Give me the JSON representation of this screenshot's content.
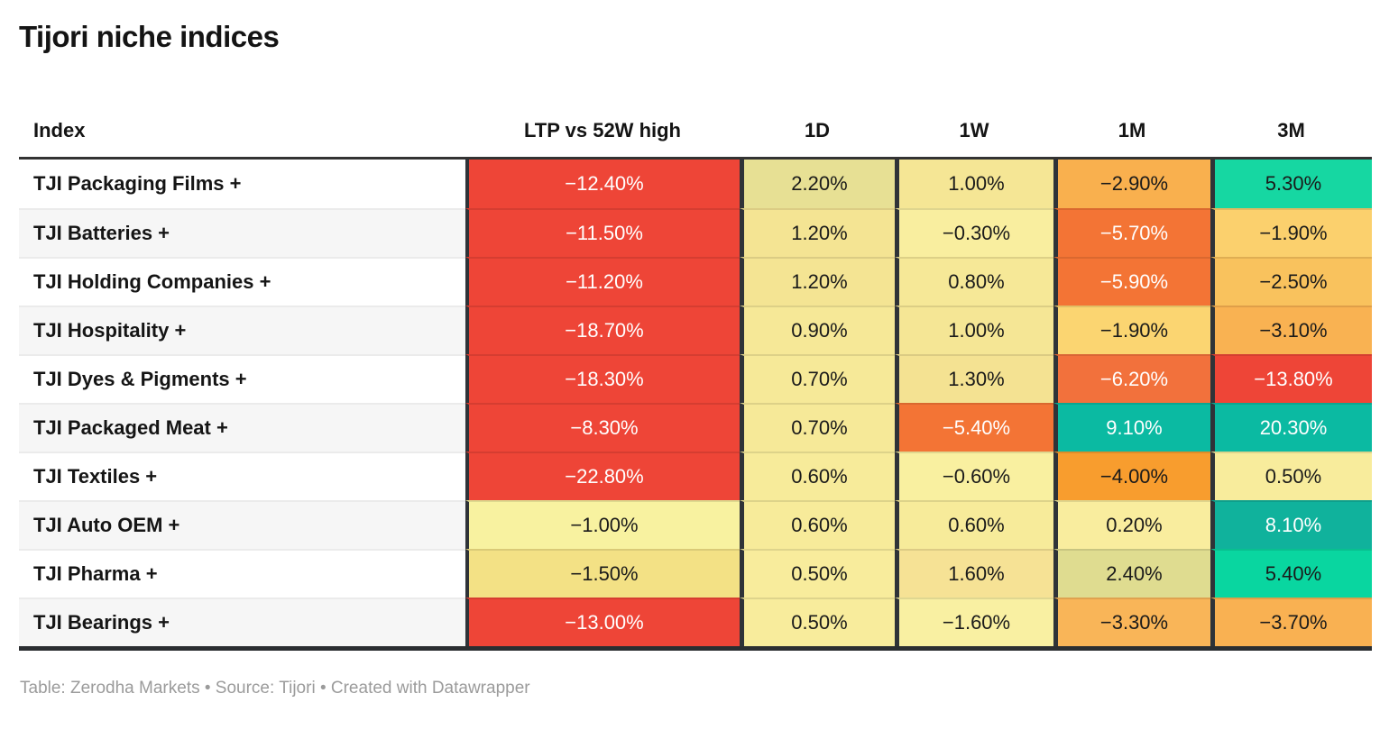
{
  "title": "Tijori niche indices",
  "footer": "Table: Zerodha Markets • Source: Tijori • Created with Datawrapper",
  "accent_colors": {
    "negative_strong": "#ee4537",
    "negative_medium": "#f37435",
    "orange": "#f89d2e",
    "neutral_yellow": "#f7eb9a",
    "positive_bright": "#16d7a2",
    "positive_teal": "#0bbaa2",
    "header_rule": "#333333",
    "column_divider": "#2f3338",
    "dark_text": "#1a1a1a",
    "light_text": "#ffffff"
  },
  "chart_data": {
    "type": "table",
    "title": "Tijori niche indices",
    "columns": [
      "Index",
      "LTP vs 52W high",
      "1D",
      "1W",
      "1M",
      "3M"
    ],
    "rows": [
      {
        "index": "TJI Packaging Films +",
        "values": [
          -12.4,
          2.2,
          1.0,
          -2.9,
          5.3
        ],
        "cells": [
          {
            "text": "−12.40%",
            "bg": "#ee4537",
            "fg": "#ffffff"
          },
          {
            "text": "2.20%",
            "bg": "#e7e094",
            "fg": "#1a1a1a"
          },
          {
            "text": "1.00%",
            "bg": "#f5e695",
            "fg": "#1a1a1a"
          },
          {
            "text": "−2.90%",
            "bg": "#f9b04e",
            "fg": "#1a1a1a"
          },
          {
            "text": "5.30%",
            "bg": "#16d7a2",
            "fg": "#1a1a1a"
          }
        ]
      },
      {
        "index": "TJI Batteries +",
        "values": [
          -11.5,
          1.2,
          -0.3,
          -5.7,
          -1.9
        ],
        "cells": [
          {
            "text": "−11.50%",
            "bg": "#ee4537",
            "fg": "#ffffff"
          },
          {
            "text": "1.20%",
            "bg": "#f4e493",
            "fg": "#1a1a1a"
          },
          {
            "text": "−0.30%",
            "bg": "#f9ee9f",
            "fg": "#1a1a1a"
          },
          {
            "text": "−5.70%",
            "bg": "#f37435",
            "fg": "#ffffff"
          },
          {
            "text": "−1.90%",
            "bg": "#fbd06d",
            "fg": "#1a1a1a"
          }
        ]
      },
      {
        "index": "TJI Holding Companies +",
        "values": [
          -11.2,
          1.2,
          0.8,
          -5.9,
          -2.5
        ],
        "cells": [
          {
            "text": "−11.20%",
            "bg": "#ee4537",
            "fg": "#ffffff"
          },
          {
            "text": "1.20%",
            "bg": "#f4e493",
            "fg": "#1a1a1a"
          },
          {
            "text": "0.80%",
            "bg": "#f6e897",
            "fg": "#1a1a1a"
          },
          {
            "text": "−5.90%",
            "bg": "#f37435",
            "fg": "#ffffff"
          },
          {
            "text": "−2.50%",
            "bg": "#f9c25d",
            "fg": "#1a1a1a"
          }
        ]
      },
      {
        "index": "TJI Hospitality +",
        "values": [
          -18.7,
          0.9,
          1.0,
          -1.9,
          -3.1
        ],
        "cells": [
          {
            "text": "−18.70%",
            "bg": "#ee4537",
            "fg": "#ffffff"
          },
          {
            "text": "0.90%",
            "bg": "#f6e897",
            "fg": "#1a1a1a"
          },
          {
            "text": "1.00%",
            "bg": "#f5e695",
            "fg": "#1a1a1a"
          },
          {
            "text": "−1.90%",
            "bg": "#fbd571",
            "fg": "#1a1a1a"
          },
          {
            "text": "−3.10%",
            "bg": "#f9b252",
            "fg": "#1a1a1a"
          }
        ]
      },
      {
        "index": "TJI Dyes & Pigments +",
        "values": [
          -18.3,
          0.7,
          1.3,
          -6.2,
          -13.8
        ],
        "cells": [
          {
            "text": "−18.30%",
            "bg": "#ee4537",
            "fg": "#ffffff"
          },
          {
            "text": "0.70%",
            "bg": "#f6e998",
            "fg": "#1a1a1a"
          },
          {
            "text": "1.30%",
            "bg": "#f4e292",
            "fg": "#1a1a1a"
          },
          {
            "text": "−6.20%",
            "bg": "#f2713c",
            "fg": "#ffffff"
          },
          {
            "text": "−13.80%",
            "bg": "#ee4537",
            "fg": "#ffffff"
          }
        ]
      },
      {
        "index": "TJI Packaged Meat +",
        "values": [
          -8.3,
          0.7,
          -5.4,
          9.1,
          20.3
        ],
        "cells": [
          {
            "text": "−8.30%",
            "bg": "#ee4537",
            "fg": "#ffffff"
          },
          {
            "text": "0.70%",
            "bg": "#f6e998",
            "fg": "#1a1a1a"
          },
          {
            "text": "−5.40%",
            "bg": "#f37435",
            "fg": "#ffffff"
          },
          {
            "text": "9.10%",
            "bg": "#0bbaa2",
            "fg": "#ffffff"
          },
          {
            "text": "20.30%",
            "bg": "#0bbaa2",
            "fg": "#ffffff"
          }
        ]
      },
      {
        "index": "TJI Textiles +",
        "values": [
          -22.8,
          0.6,
          -0.6,
          -4.0,
          0.5
        ],
        "cells": [
          {
            "text": "−22.80%",
            "bg": "#ee4537",
            "fg": "#ffffff"
          },
          {
            "text": "0.60%",
            "bg": "#f7eb9a",
            "fg": "#1a1a1a"
          },
          {
            "text": "−0.60%",
            "bg": "#f9f0a0",
            "fg": "#1a1a1a"
          },
          {
            "text": "−4.00%",
            "bg": "#f89d2e",
            "fg": "#1a1a1a"
          },
          {
            "text": "0.50%",
            "bg": "#f8ec9c",
            "fg": "#1a1a1a"
          }
        ]
      },
      {
        "index": "TJI Auto OEM +",
        "values": [
          -1.0,
          0.6,
          0.6,
          0.2,
          8.1
        ],
        "cells": [
          {
            "text": "−1.00%",
            "bg": "#f8f2a0",
            "fg": "#1a1a1a"
          },
          {
            "text": "0.60%",
            "bg": "#f7eb9a",
            "fg": "#1a1a1a"
          },
          {
            "text": "0.60%",
            "bg": "#f7eb9a",
            "fg": "#1a1a1a"
          },
          {
            "text": "0.20%",
            "bg": "#f9ed9e",
            "fg": "#1a1a1a"
          },
          {
            "text": "8.10%",
            "bg": "#10b29c",
            "fg": "#ffffff"
          }
        ]
      },
      {
        "index": "TJI Pharma +",
        "values": [
          -1.5,
          0.5,
          1.6,
          2.4,
          5.4
        ],
        "cells": [
          {
            "text": "−1.50%",
            "bg": "#f3e185",
            "fg": "#1a1a1a"
          },
          {
            "text": "0.50%",
            "bg": "#f8ec9c",
            "fg": "#1a1a1a"
          },
          {
            "text": "1.60%",
            "bg": "#f6e295",
            "fg": "#1a1a1a"
          },
          {
            "text": "2.40%",
            "bg": "#dfdc90",
            "fg": "#1a1a1a"
          },
          {
            "text": "5.40%",
            "bg": "#09d6a0",
            "fg": "#1a1a1a"
          }
        ]
      },
      {
        "index": "TJI Bearings +",
        "values": [
          -13.0,
          0.5,
          -1.6,
          -3.3,
          -3.7
        ],
        "cells": [
          {
            "text": "−13.00%",
            "bg": "#ee4537",
            "fg": "#ffffff"
          },
          {
            "text": "0.50%",
            "bg": "#f8ec9c",
            "fg": "#1a1a1a"
          },
          {
            "text": "−1.60%",
            "bg": "#f9f0a2",
            "fg": "#1a1a1a"
          },
          {
            "text": "−3.30%",
            "bg": "#f9b558",
            "fg": "#1a1a1a"
          },
          {
            "text": "−3.70%",
            "bg": "#f9b152",
            "fg": "#1a1a1a"
          }
        ]
      }
    ]
  }
}
